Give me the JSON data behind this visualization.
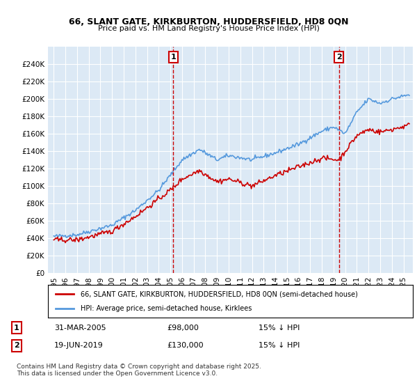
{
  "title1": "66, SLANT GATE, KIRKBURTON, HUDDERSFIELD, HD8 0QN",
  "title2": "Price paid vs. HM Land Registry's House Price Index (HPI)",
  "bg_color": "#dce9f5",
  "plot_bg": "#dce9f5",
  "grid_color": "#ffffff",
  "hpi_color": "#5599dd",
  "price_color": "#cc0000",
  "marker1_x": 2005.25,
  "marker2_x": 2019.47,
  "marker1_label": "1",
  "marker2_label": "2",
  "marker1_date": "31-MAR-2005",
  "marker1_price": "£98,000",
  "marker1_hpi": "15% ↓ HPI",
  "marker2_date": "19-JUN-2019",
  "marker2_price": "£130,000",
  "marker2_hpi": "15% ↓ HPI",
  "legend1": "66, SLANT GATE, KIRKBURTON, HUDDERSFIELD, HD8 0QN (semi-detached house)",
  "legend2": "HPI: Average price, semi-detached house, Kirklees",
  "footnote": "Contains HM Land Registry data © Crown copyright and database right 2025.\nThis data is licensed under the Open Government Licence v3.0.",
  "ylabel": "",
  "ylim_min": 0,
  "ylim_max": 260000,
  "xlim_min": 1994.5,
  "xlim_max": 2025.8,
  "yticks": [
    0,
    20000,
    40000,
    60000,
    80000,
    100000,
    120000,
    140000,
    160000,
    180000,
    200000,
    220000,
    240000
  ],
  "ytick_labels": [
    "£0",
    "£20K",
    "£40K",
    "£60K",
    "£80K",
    "£100K",
    "£120K",
    "£140K",
    "£160K",
    "£180K",
    "£200K",
    "£220K",
    "£240K"
  ],
  "xticks": [
    1995,
    1996,
    1997,
    1998,
    1999,
    2000,
    2001,
    2002,
    2003,
    2004,
    2005,
    2006,
    2007,
    2008,
    2009,
    2010,
    2011,
    2012,
    2013,
    2014,
    2015,
    2016,
    2017,
    2018,
    2019,
    2020,
    2021,
    2022,
    2023,
    2024,
    2025
  ]
}
